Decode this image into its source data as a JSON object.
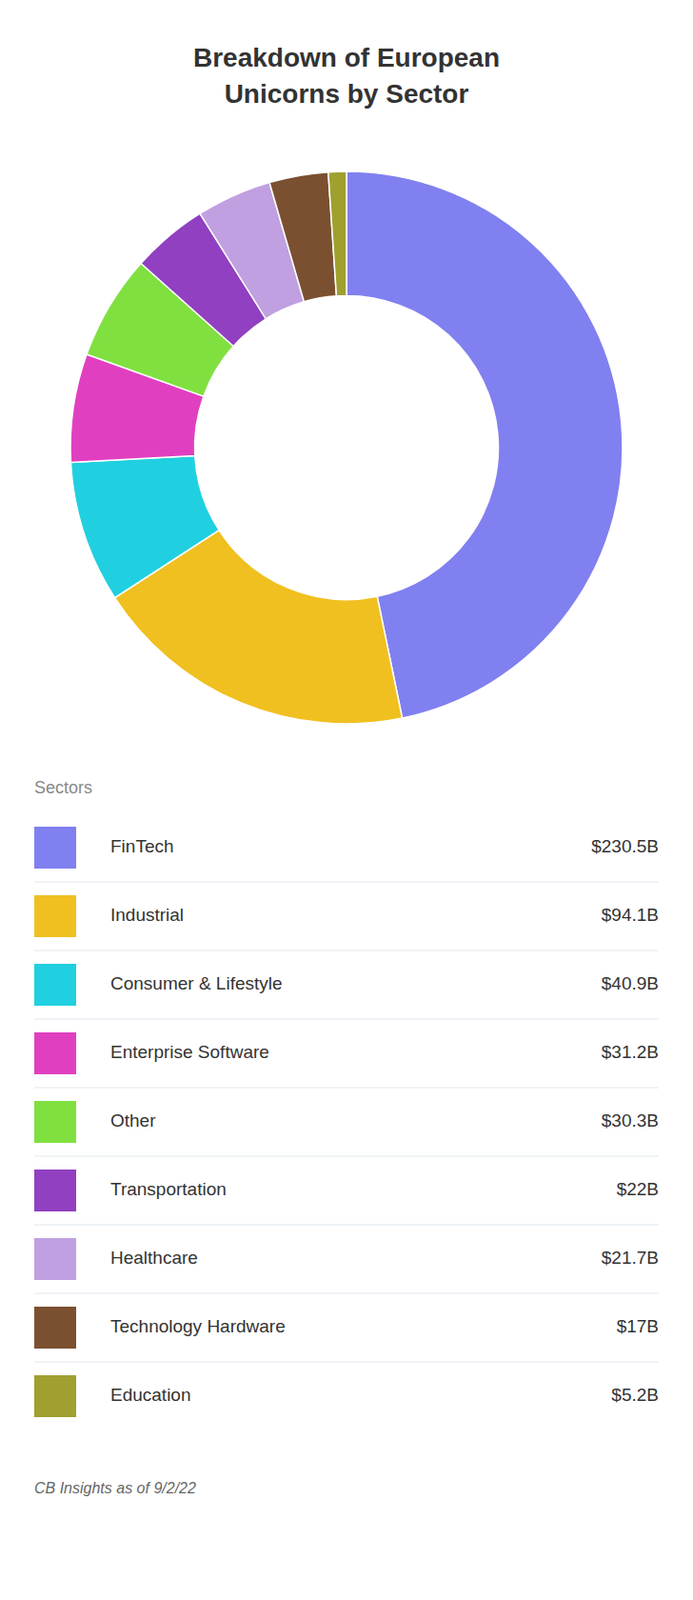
{
  "chart_data": {
    "type": "pie",
    "title": "Breakdown of European\nUnicorns by Sector",
    "categories": [
      "FinTech",
      "Industrial",
      "Consumer & Lifestyle",
      "Enterprise Software",
      "Other",
      "Transportation",
      "Healthcare",
      "Technology Hardware",
      "Education"
    ],
    "values": [
      230.5,
      94.1,
      40.9,
      31.2,
      30.3,
      22.0,
      21.7,
      17.0,
      5.2
    ],
    "value_labels": [
      "$230.5B",
      "$94.1B",
      "$40.9B",
      "$31.2B",
      "$30.3B",
      "$22B",
      "$21.7B",
      "$17B",
      "$5.2B"
    ],
    "colors": [
      "#8080f0",
      "#f0c020",
      "#20d0e0",
      "#e040c0",
      "#80e040",
      "#9040c0",
      "#c0a0e0",
      "#7b5030",
      "#a0a030"
    ],
    "legend": "bottom",
    "legend_title": "Sectors",
    "footnote": "CB Insights as of 9/2/22"
  }
}
